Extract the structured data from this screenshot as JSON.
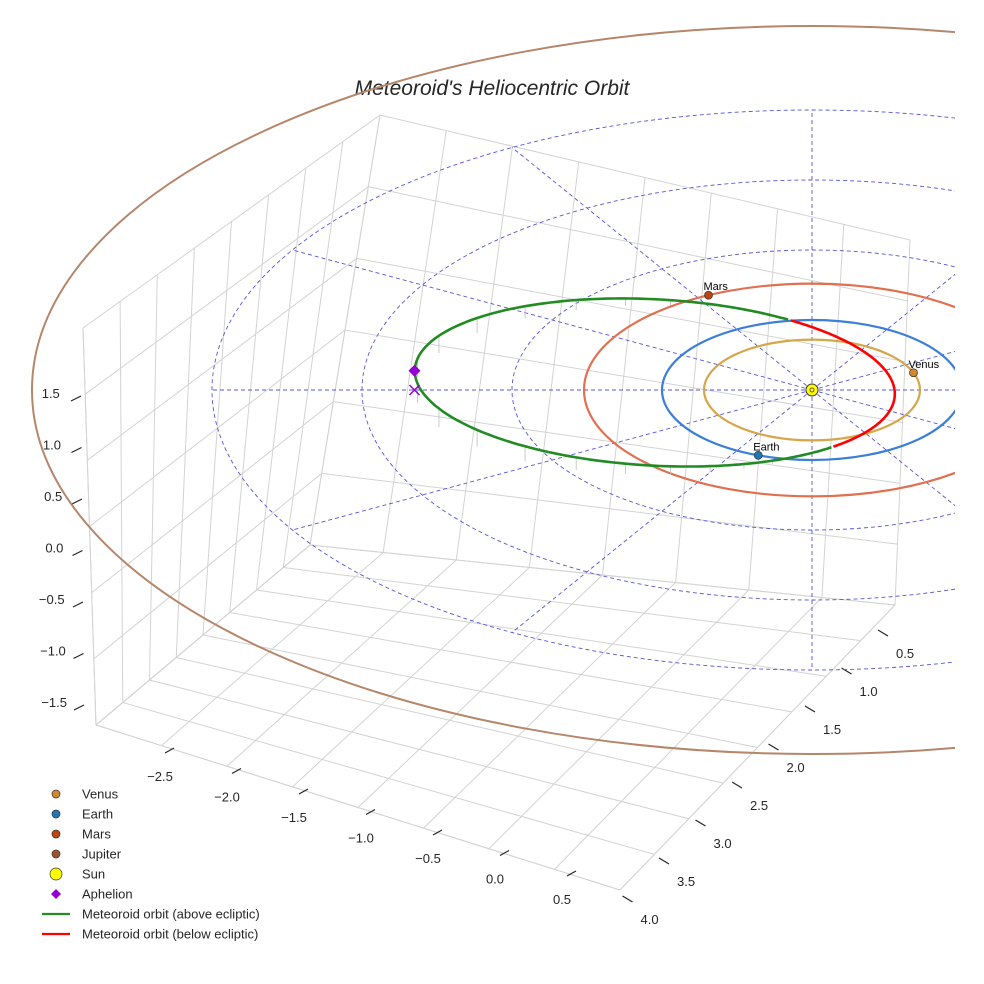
{
  "chart_data": {
    "type": "line",
    "title": "Meteoroid's Heliocentric Orbit",
    "xlabel": "",
    "ylabel": "",
    "zlabel": "",
    "grid": true,
    "legend_position": "bottom-left",
    "axes": {
      "x": {
        "ticks": [
          -2.5,
          -2.0,
          -1.5,
          -1.0,
          -0.5,
          0.0,
          0.5
        ],
        "tick_labels": [
          "−2.5",
          "−2.0",
          "−1.5",
          "−1.0",
          "−0.5",
          "0.0",
          "0.5"
        ]
      },
      "y": {
        "ticks": [
          0.5,
          1.0,
          1.5,
          2.0,
          2.5,
          3.0,
          3.5,
          4.0
        ],
        "tick_labels": [
          "0.5",
          "1.0",
          "1.5",
          "2.0",
          "2.5",
          "3.0",
          "3.5",
          "4.0"
        ]
      },
      "z": {
        "ticks": [
          -1.5,
          -1.0,
          -0.5,
          0.0,
          0.5,
          1.0,
          1.5
        ],
        "tick_labels": [
          "−1.5",
          "−1.0",
          "−0.5",
          "0.0",
          "0.5",
          "1.0",
          "1.5"
        ]
      }
    },
    "reference_circles_au": [
      1,
      2,
      3,
      4
    ],
    "planets": [
      {
        "name": "Venus",
        "orbit_radius_au": 0.72,
        "position_angle_deg": 20,
        "color": "#d2872a",
        "orbit_color": "#d6a64a"
      },
      {
        "name": "Earth",
        "orbit_radius_au": 1.0,
        "position_angle_deg": 249,
        "color": "#1f77b4",
        "orbit_color": "#3b7fd6"
      },
      {
        "name": "Mars",
        "orbit_radius_au": 1.52,
        "position_angle_deg": 117,
        "color": "#c1440e",
        "orbit_color": "#e07050"
      },
      {
        "name": "Jupiter",
        "orbit_radius_au": 5.2,
        "color": "#a0522d",
        "orbit_color": "#b5866a"
      }
    ],
    "sun": {
      "name": "Sun",
      "color": "#ffff00"
    },
    "aphelion": {
      "name": "Aphelion",
      "color": "#9400d3",
      "distance_au": 2.65,
      "z_au": 0.35
    },
    "series": [
      {
        "name": "Meteoroid orbit (above ecliptic)",
        "color": "#228b22"
      },
      {
        "name": "Meteoroid orbit (below ecliptic)",
        "color": "#ff0000"
      }
    ],
    "meteoroid_orbit": {
      "semi_major_axis_au": 1.6,
      "eccentricity": 0.655,
      "aphelion_direction_deg": 180,
      "max_height_au": 0.35
    },
    "legend": [
      {
        "label": "Venus",
        "marker": "circle",
        "color": "#d2872a"
      },
      {
        "label": "Earth",
        "marker": "circle",
        "color": "#1f77b4"
      },
      {
        "label": "Mars",
        "marker": "circle",
        "color": "#c1440e"
      },
      {
        "label": "Jupiter",
        "marker": "circle",
        "color": "#a0522d"
      },
      {
        "label": "Sun",
        "marker": "circle-large",
        "color": "#ffff00"
      },
      {
        "label": "Aphelion",
        "marker": "diamond",
        "color": "#9400d3"
      },
      {
        "label": "Meteoroid orbit (above ecliptic)",
        "marker": "line",
        "color": "#228b22"
      },
      {
        "label": "Meteoroid orbit (below ecliptic)",
        "marker": "line",
        "color": "#ff0000"
      }
    ]
  }
}
